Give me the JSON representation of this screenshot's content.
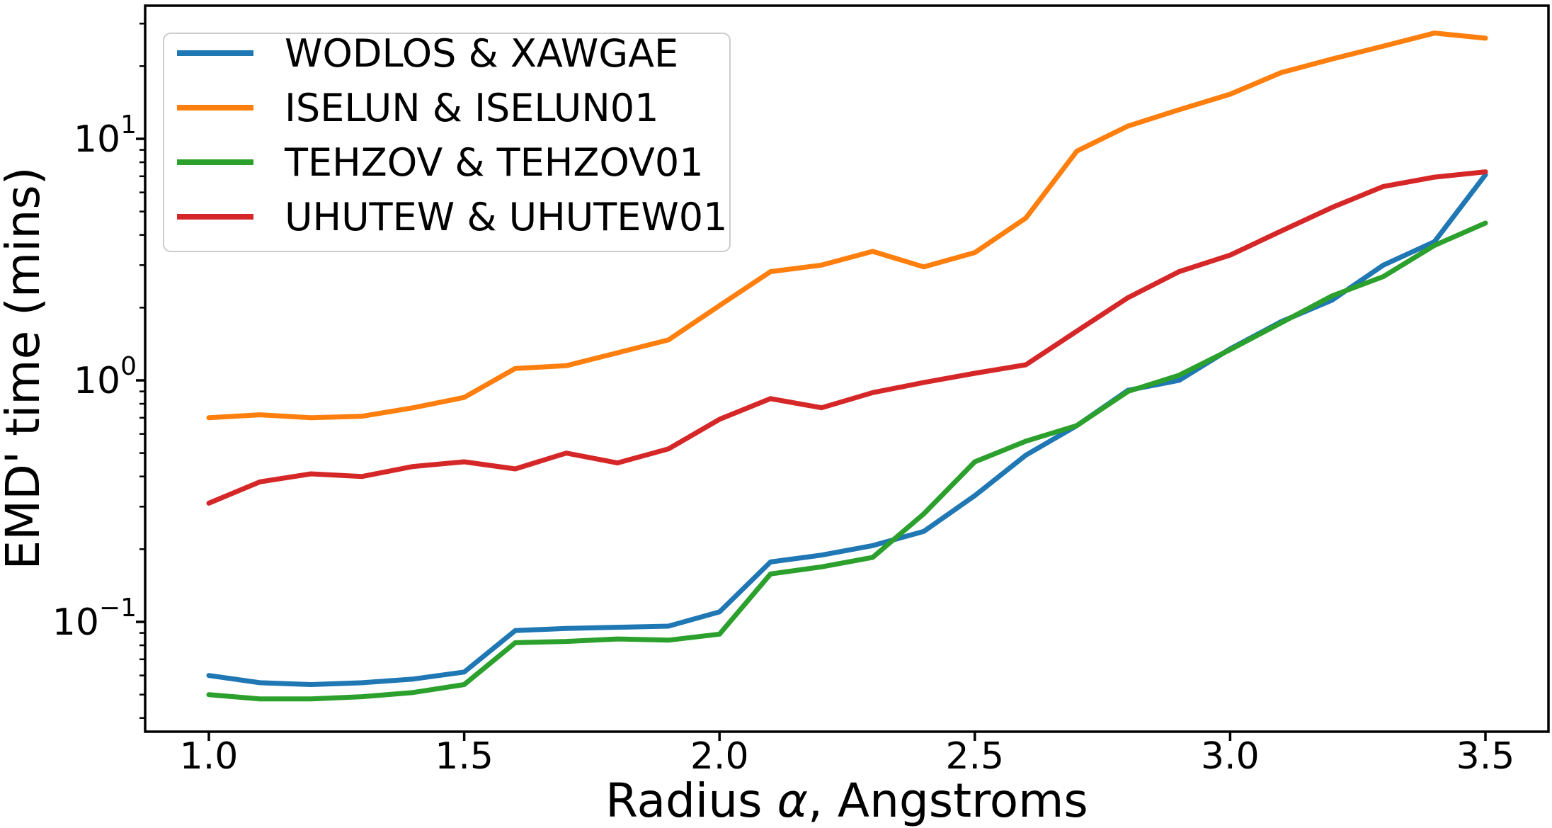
{
  "figure": {
    "background": "#ffffff",
    "xlabel_parts": {
      "prefix": "Radius ",
      "alpha": "α",
      "suffix": ", Angstroms"
    }
  },
  "axes": {
    "spine_color": "#000000",
    "y_tick_labels": [
      {
        "base": "10",
        "exp": "−1",
        "value": 0.1
      },
      {
        "base": "10",
        "exp": "0",
        "value": 1
      },
      {
        "base": "10",
        "exp": "1",
        "value": 10
      }
    ]
  },
  "legend": {
    "position": "upper left",
    "border_color": "#cccccc",
    "background": "rgba(255,255,255,0.85)"
  },
  "chart_data": {
    "type": "line",
    "title": "",
    "xlabel": "Radius α, Angstroms",
    "ylabel": "EMD' time (mins)",
    "y_scale": "log",
    "grid": false,
    "legend_position": "upper left",
    "xlim": [
      0.875,
      3.625
    ],
    "ylim": [
      0.035,
      35.6
    ],
    "x_ticks": [
      1.0,
      1.5,
      2.0,
      2.5,
      3.0,
      3.5
    ],
    "x_tick_labels": [
      "1.0",
      "1.5",
      "2.0",
      "2.5",
      "3.0",
      "3.5"
    ],
    "y_ticks": [
      0.1,
      1,
      10
    ],
    "x": [
      1.0,
      1.1,
      1.2,
      1.3,
      1.4,
      1.5,
      1.6,
      1.7,
      1.8,
      1.9,
      2.0,
      2.1,
      2.2,
      2.3,
      2.4,
      2.5,
      2.6,
      2.7,
      2.8,
      2.9,
      3.0,
      3.1,
      3.2,
      3.3,
      3.4,
      3.5
    ],
    "series": [
      {
        "name": "WODLOS & XAWGAE",
        "color": "#1f77b4",
        "values": [
          0.06,
          0.056,
          0.055,
          0.056,
          0.058,
          0.062,
          0.092,
          0.094,
          0.095,
          0.096,
          0.11,
          0.177,
          0.189,
          0.207,
          0.237,
          0.333,
          0.49,
          0.65,
          0.91,
          1.0,
          1.35,
          1.75,
          2.15,
          3.0,
          3.75,
          7.1
        ]
      },
      {
        "name": "ISELUN & ISELUN01",
        "color": "#ff7f0e",
        "values": [
          0.7,
          0.72,
          0.7,
          0.71,
          0.77,
          0.85,
          1.12,
          1.15,
          1.3,
          1.47,
          2.04,
          2.82,
          3.0,
          3.42,
          2.95,
          3.38,
          4.7,
          8.9,
          11.3,
          13.2,
          15.3,
          18.8,
          21.4,
          24.2,
          27.4,
          26.1
        ]
      },
      {
        "name": "TEHZOV & TEHZOV01",
        "color": "#2ca02c",
        "values": [
          0.05,
          0.048,
          0.048,
          0.049,
          0.051,
          0.055,
          0.082,
          0.083,
          0.085,
          0.084,
          0.089,
          0.158,
          0.169,
          0.185,
          0.28,
          0.46,
          0.56,
          0.65,
          0.9,
          1.05,
          1.34,
          1.73,
          2.24,
          2.69,
          3.62,
          4.48
        ]
      },
      {
        "name": "UHUTEW & UHUTEW01",
        "color": "#d62728",
        "values": [
          0.31,
          0.38,
          0.41,
          0.4,
          0.44,
          0.46,
          0.43,
          0.5,
          0.455,
          0.52,
          0.69,
          0.84,
          0.77,
          0.89,
          0.98,
          1.07,
          1.16,
          1.6,
          2.2,
          2.82,
          3.3,
          4.15,
          5.2,
          6.35,
          6.94,
          7.3
        ]
      }
    ]
  }
}
